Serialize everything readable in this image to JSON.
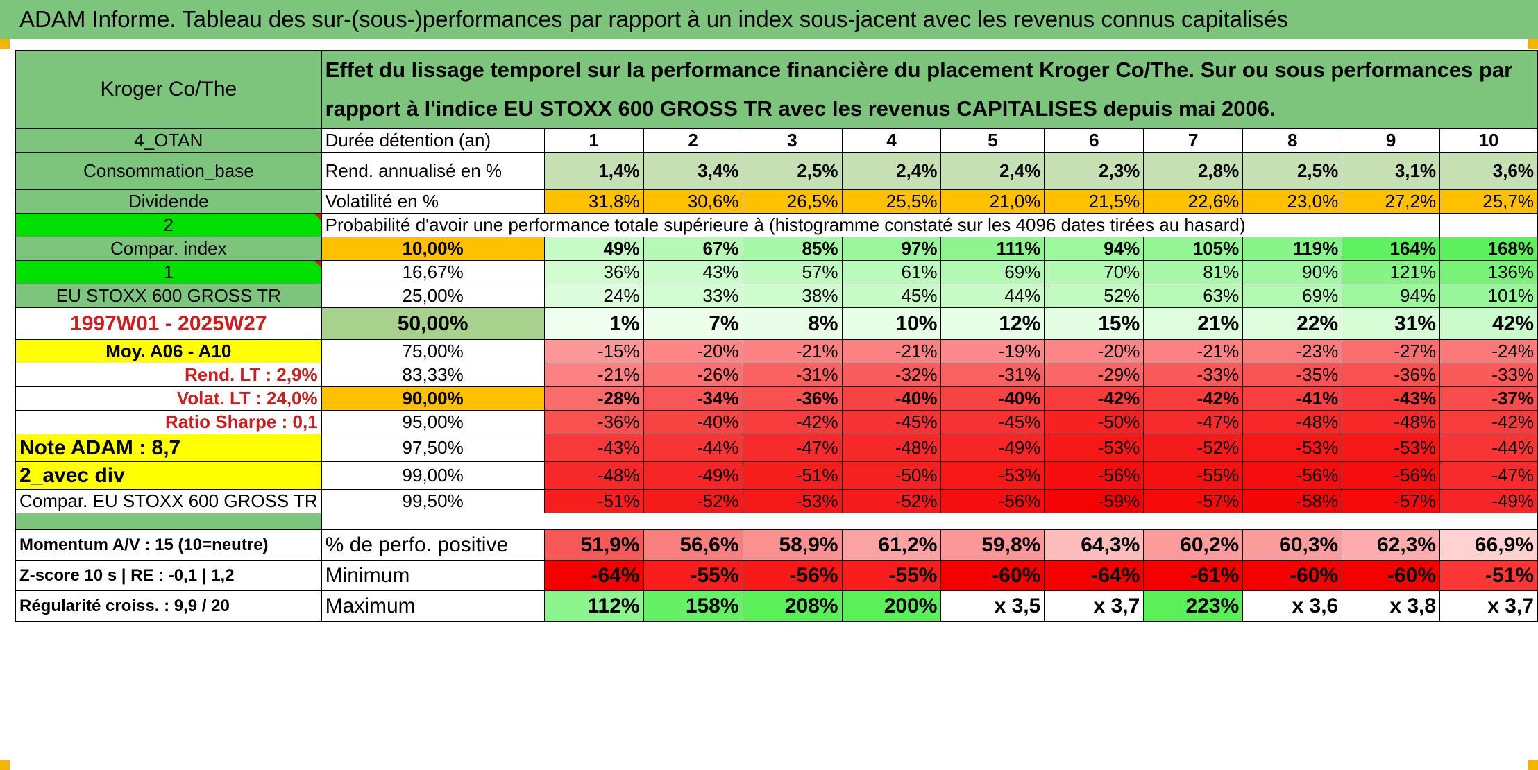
{
  "title": "ADAM Informe. Tableau des sur-(sous-)performances par rapport à un index sous-jacent avec les revenus connus capitalisés",
  "header": {
    "company": "Kroger Co/The",
    "description": "Effet du lissage temporel sur la performance financière du placement Kroger Co/The. Sur ou sous performances par rapport à l'indice EU STOXX 600 GROSS TR avec les revenus CAPITALISES depuis mai 2006."
  },
  "left_labels": {
    "otan": "4_OTAN",
    "sector": "Consommation_base",
    "dividend": "Dividende",
    "n2": "2",
    "compar_index": "Compar. index",
    "n1": "1",
    "index_name": "EU STOXX 600 GROSS TR",
    "period": "1997W01 - 2025W27",
    "moy": "Moy. A06 - A10",
    "rend_lt": "Rend. LT :   2,9%",
    "volat_lt": "Volat. LT :   24,0%",
    "sharpe": "Ratio Sharpe :   0,1",
    "note": "Note ADAM : 8,7",
    "avec_div": "2_avec div",
    "compar_full": "Compar. EU STOXX 600 GROSS TR"
  },
  "row_labels": {
    "duree": "Durée détention (an)",
    "rend": "Rend. annualisé en %",
    "vol": "Volatilité en %",
    "prob": "Probabilité d'avoir une performance totale supérieure à (histogramme constaté sur les 4096 dates tirées au hasard)"
  },
  "years": [
    "1",
    "2",
    "3",
    "4",
    "5",
    "6",
    "7",
    "8",
    "9",
    "10"
  ],
  "rend": [
    "1,4%",
    "3,4%",
    "2,5%",
    "2,4%",
    "2,4%",
    "2,3%",
    "2,8%",
    "2,5%",
    "3,1%",
    "3,6%"
  ],
  "vol": [
    "31,8%",
    "30,6%",
    "26,5%",
    "25,5%",
    "21,0%",
    "21,5%",
    "22,6%",
    "23,0%",
    "27,2%",
    "25,7%"
  ],
  "percentiles": [
    {
      "p": "10,00%",
      "v": [
        "49%",
        "67%",
        "85%",
        "97%",
        "111%",
        "94%",
        "105%",
        "119%",
        "164%",
        "168%"
      ]
    },
    {
      "p": "16,67%",
      "v": [
        "36%",
        "43%",
        "57%",
        "61%",
        "69%",
        "70%",
        "81%",
        "90%",
        "121%",
        "136%"
      ]
    },
    {
      "p": "25,00%",
      "v": [
        "24%",
        "33%",
        "38%",
        "45%",
        "44%",
        "52%",
        "63%",
        "69%",
        "94%",
        "101%"
      ]
    },
    {
      "p": "50,00%",
      "v": [
        "1%",
        "7%",
        "8%",
        "10%",
        "12%",
        "15%",
        "21%",
        "22%",
        "31%",
        "42%"
      ]
    },
    {
      "p": "75,00%",
      "v": [
        "-15%",
        "-20%",
        "-21%",
        "-21%",
        "-19%",
        "-20%",
        "-21%",
        "-23%",
        "-27%",
        "-24%"
      ]
    },
    {
      "p": "83,33%",
      "v": [
        "-21%",
        "-26%",
        "-31%",
        "-32%",
        "-31%",
        "-29%",
        "-33%",
        "-35%",
        "-36%",
        "-33%"
      ]
    },
    {
      "p": "90,00%",
      "v": [
        "-28%",
        "-34%",
        "-36%",
        "-40%",
        "-40%",
        "-42%",
        "-42%",
        "-41%",
        "-43%",
        "-37%"
      ]
    },
    {
      "p": "95,00%",
      "v": [
        "-36%",
        "-40%",
        "-42%",
        "-45%",
        "-45%",
        "-50%",
        "-47%",
        "-48%",
        "-48%",
        "-42%"
      ]
    },
    {
      "p": "97,50%",
      "v": [
        "-43%",
        "-44%",
        "-47%",
        "-48%",
        "-49%",
        "-53%",
        "-52%",
        "-53%",
        "-53%",
        "-44%"
      ]
    },
    {
      "p": "99,00%",
      "v": [
        "-48%",
        "-49%",
        "-51%",
        "-50%",
        "-53%",
        "-56%",
        "-55%",
        "-56%",
        "-56%",
        "-47%"
      ]
    },
    {
      "p": "99,50%",
      "v": [
        "-51%",
        "-52%",
        "-53%",
        "-52%",
        "-56%",
        "-59%",
        "-57%",
        "-58%",
        "-57%",
        "-49%"
      ]
    }
  ],
  "stats": {
    "momentum": "Momentum A/V : 15 (10=neutre)",
    "zscore": "Z-score 10 s | RE : -0,1 | 1,2",
    "regularite": "Régularité croiss. : 9,9 / 20",
    "pos_label": "% de perfo. positive",
    "min_label": "Minimum",
    "max_label": "Maximum",
    "pos": [
      "51,9%",
      "56,6%",
      "58,9%",
      "61,2%",
      "59,8%",
      "64,3%",
      "60,2%",
      "60,3%",
      "62,3%",
      "66,9%"
    ],
    "min": [
      "-64%",
      "-55%",
      "-56%",
      "-55%",
      "-60%",
      "-64%",
      "-61%",
      "-60%",
      "-60%",
      "-51%"
    ],
    "max": [
      "112%",
      "158%",
      "208%",
      "200%",
      "x 3,5",
      "x 3,7",
      "223%",
      "x 3,6",
      "x 3,8",
      "x 3,7"
    ]
  },
  "colors": {
    "title_green": "#7dc47d",
    "light_green": "#a9d18e",
    "bright_green": "#00e000",
    "yellow": "#ffff00",
    "orange": "#ffc000",
    "label_red": "#d01c1c"
  }
}
